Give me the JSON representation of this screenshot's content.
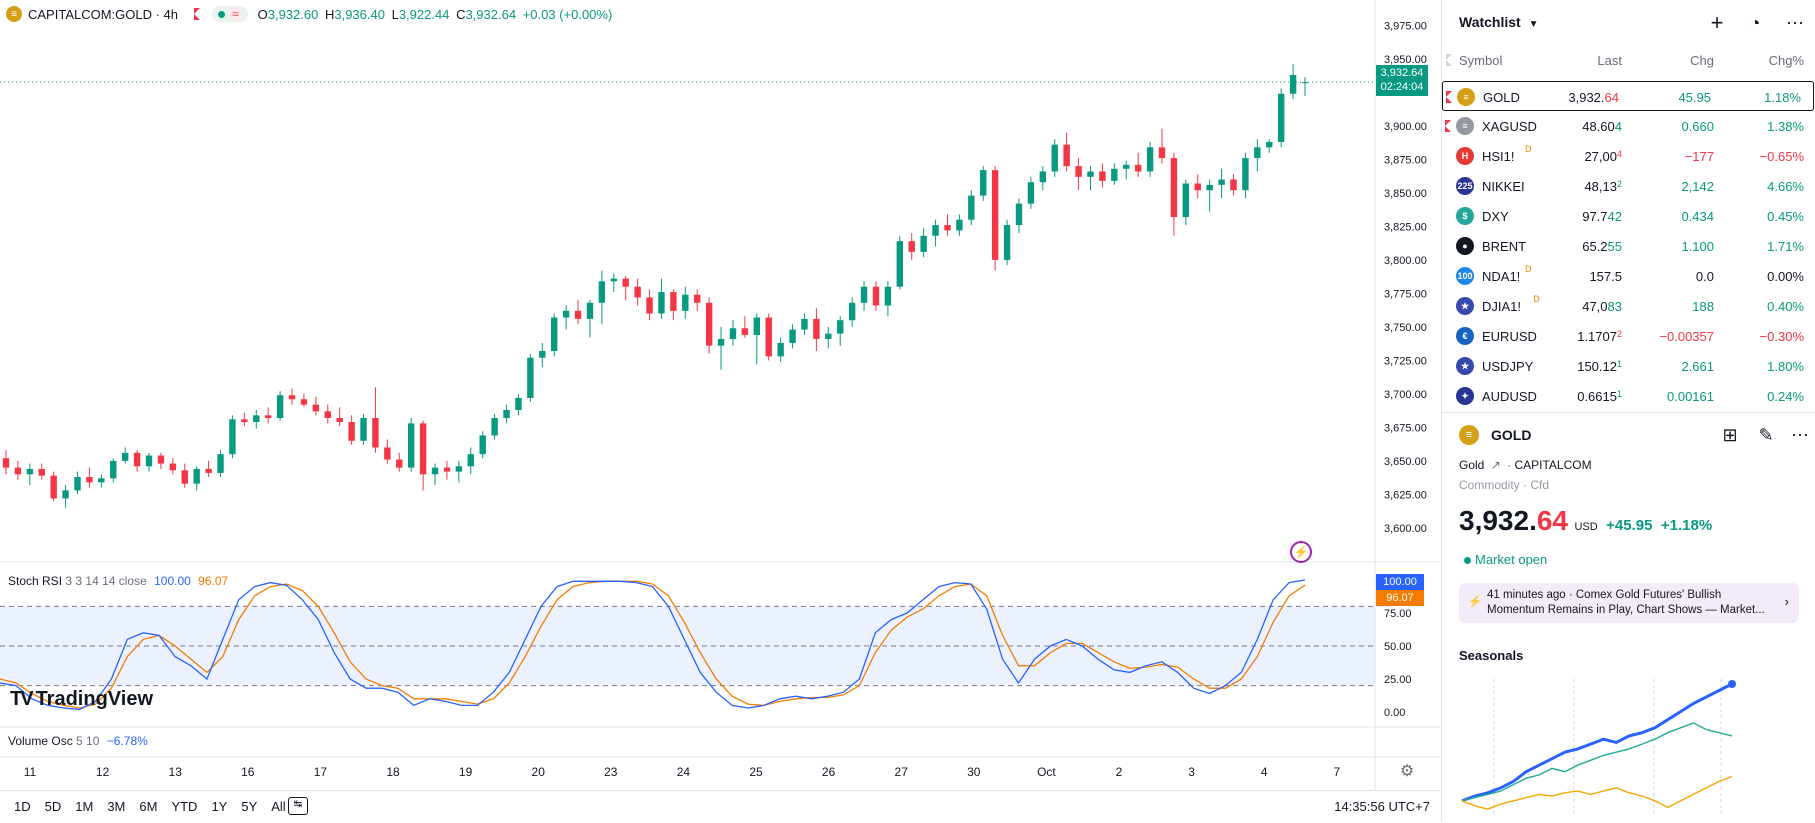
{
  "legend": {
    "symbol": "CAPITALCOM:GOLD · 4h",
    "o_label": "O",
    "o_value": "3,932.60",
    "h_label": "H",
    "h_value": "3,936.40",
    "l_label": "L",
    "l_value": "3,922.44",
    "c_label": "C",
    "c_value": "3,932.64",
    "change": "+0.03 (+0.00%)"
  },
  "price_axis": {
    "ticks": [
      {
        "v": 3975,
        "label": "3,975.00"
      },
      {
        "v": 3950,
        "label": "3,950.00"
      },
      {
        "v": 3900,
        "label": "3,900.00"
      },
      {
        "v": 3875,
        "label": "3,875.00"
      },
      {
        "v": 3850,
        "label": "3,850.00"
      },
      {
        "v": 3825,
        "label": "3,825.00"
      },
      {
        "v": 3800,
        "label": "3,800.00"
      },
      {
        "v": 3775,
        "label": "3,775.00"
      },
      {
        "v": 3750,
        "label": "3,750.00"
      },
      {
        "v": 3725,
        "label": "3,725.00"
      },
      {
        "v": 3700,
        "label": "3,700.00"
      },
      {
        "v": 3675,
        "label": "3,675.00"
      },
      {
        "v": 3650,
        "label": "3,650.00"
      },
      {
        "v": 3625,
        "label": "3,625.00"
      },
      {
        "v": 3600,
        "label": "3,600.00"
      }
    ],
    "last_price": "3,932.64",
    "countdown": "02:24:04"
  },
  "stoch": {
    "label": "Stoch RSI",
    "params": "3 3 14 14 close",
    "k_value": "100.00",
    "d_value": "96.07",
    "axis": [
      "75.00",
      "50.00",
      "25.00",
      "0.00"
    ],
    "k_color": "#2962ff",
    "d_color": "#f57c00"
  },
  "volume_osc": {
    "label": "Volume Osc",
    "params": "5 10",
    "value": "−6.78%"
  },
  "brand": "TradingView",
  "time_axis": [
    "11",
    "12",
    "13",
    "16",
    "17",
    "18",
    "19",
    "20",
    "23",
    "24",
    "25",
    "26",
    "27",
    "30",
    "Oct",
    "2",
    "3",
    "4",
    "7"
  ],
  "ranges": [
    "1D",
    "5D",
    "1M",
    "3M",
    "6M",
    "YTD",
    "1Y",
    "5Y",
    "All"
  ],
  "clock": "14:35:56 UTC+7",
  "watchlist": {
    "title": "Watchlist",
    "headers": {
      "symbol": "Symbol",
      "last": "Last",
      "chg": "Chg",
      "chgp": "Chg%"
    },
    "rows": [
      {
        "sym": "GOLD",
        "last_a": "3,932.",
        "last_b": "64",
        "chg": "45.95",
        "chgp": "1.18%",
        "dir": "pos",
        "icon": "gold-icon",
        "color": "#d4a017",
        "glyph": "≡"
      },
      {
        "sym": "XAGUSD",
        "last_a": "48.60",
        "last_b": "4",
        "chg": "0.660",
        "chgp": "1.38%",
        "dir": "pos",
        "icon": "silver-icon",
        "color": "#9598a1",
        "glyph": "≡"
      },
      {
        "sym": "HSI1!",
        "last_a": "27,00",
        "last_b": "4",
        "chg": "−177",
        "chgp": "−0.65%",
        "dir": "neg",
        "icon": "hsi-icon",
        "color": "#e53935",
        "glyph": "H",
        "badge": "D"
      },
      {
        "sym": "NIKKEI",
        "last_a": "48,13",
        "last_b": "2",
        "chg": "2,142",
        "chgp": "4.66%",
        "dir": "pos",
        "icon": "nikkei-icon",
        "color": "#283593",
        "glyph": "225"
      },
      {
        "sym": "DXY",
        "last_a": "97.7",
        "last_b": "42",
        "chg": "0.434",
        "chgp": "0.45%",
        "dir": "pos",
        "icon": "dollar-icon",
        "color": "#26a69a",
        "glyph": "$"
      },
      {
        "sym": "BRENT",
        "last_a": "65.2",
        "last_b": "55",
        "chg": "1.100",
        "chgp": "1.71%",
        "dir": "pos",
        "icon": "oil-drop-icon",
        "color": "#131722",
        "glyph": "●"
      },
      {
        "sym": "NDA1!",
        "last_a": "157.5",
        "last_b": "",
        "chg": "0.0",
        "chgp": "0.00%",
        "dir": "neu",
        "icon": "nasdaq-icon",
        "color": "#1e88e5",
        "glyph": "100",
        "badge": "D"
      },
      {
        "sym": "DJIA1!",
        "last_a": "47,0",
        "last_b": "83",
        "chg": "188",
        "chgp": "0.40%",
        "dir": "pos",
        "icon": "us-flag-icon",
        "color": "#3949ab",
        "glyph": "★",
        "badge": "D"
      },
      {
        "sym": "EURUSD",
        "last_a": "1.1707",
        "last_b": "2",
        "chg": "−0.00357",
        "chgp": "−0.30%",
        "dir": "neg",
        "icon": "eu-flag-icon",
        "color": "#1565c0",
        "glyph": "€"
      },
      {
        "sym": "USDJPY",
        "last_a": "150.12",
        "last_b": "1",
        "chg": "2.661",
        "chgp": "1.80%",
        "dir": "pos",
        "icon": "us-flag-icon",
        "color": "#3949ab",
        "glyph": "★"
      },
      {
        "sym": "AUDUSD",
        "last_a": "0.6615",
        "last_b": "1",
        "chg": "0.00161",
        "chgp": "0.24%",
        "dir": "pos",
        "icon": "au-flag-icon",
        "color": "#283593",
        "glyph": "✦"
      }
    ]
  },
  "details": {
    "symbol": "GOLD",
    "name": "Gold",
    "exchange": "CAPITALCOM",
    "category": "Commodity",
    "type": "Cfd",
    "price_a": "3,932.",
    "price_b": "64",
    "currency": "USD",
    "change": "+45.95",
    "change_pct": "+1.18%",
    "market_status": "Market open",
    "news_time": "41 minutes ago",
    "news_line1": "Comex Gold Futures' Bullish",
    "news_line2": "Momentum Remains in Play, Chart Shows — Market...",
    "seasonals_title": "Seasonals"
  },
  "colors": {
    "up": "#089981",
    "down": "#f23645",
    "accent": "#2962ff"
  },
  "chart_data": {
    "type": "candlestick",
    "title": "CAPITALCOM:GOLD · 4h",
    "candles": [
      [
        3652,
        3658,
        3640,
        3645
      ],
      [
        3645,
        3650,
        3636,
        3640
      ],
      [
        3640,
        3648,
        3632,
        3644
      ],
      [
        3644,
        3648,
        3636,
        3639
      ],
      [
        3639,
        3642,
        3620,
        3622
      ],
      [
        3622,
        3632,
        3615,
        3628
      ],
      [
        3628,
        3642,
        3625,
        3638
      ],
      [
        3638,
        3645,
        3630,
        3634
      ],
      [
        3634,
        3640,
        3630,
        3637
      ],
      [
        3637,
        3652,
        3634,
        3650
      ],
      [
        3650,
        3660,
        3648,
        3656
      ],
      [
        3656,
        3658,
        3642,
        3646
      ],
      [
        3646,
        3656,
        3642,
        3654
      ],
      [
        3654,
        3656,
        3644,
        3648
      ],
      [
        3648,
        3652,
        3640,
        3643
      ],
      [
        3643,
        3648,
        3630,
        3633
      ],
      [
        3633,
        3646,
        3628,
        3644
      ],
      [
        3644,
        3650,
        3638,
        3641
      ],
      [
        3641,
        3658,
        3638,
        3655
      ],
      [
        3655,
        3684,
        3652,
        3681
      ],
      [
        3681,
        3686,
        3676,
        3679
      ],
      [
        3679,
        3688,
        3674,
        3684
      ],
      [
        3684,
        3690,
        3678,
        3682
      ],
      [
        3682,
        3702,
        3680,
        3699
      ],
      [
        3699,
        3704,
        3692,
        3696
      ],
      [
        3696,
        3700,
        3690,
        3692
      ],
      [
        3692,
        3698,
        3684,
        3687
      ],
      [
        3687,
        3692,
        3678,
        3682
      ],
      [
        3682,
        3690,
        3676,
        3679
      ],
      [
        3679,
        3684,
        3662,
        3665
      ],
      [
        3665,
        3685,
        3662,
        3682
      ],
      [
        3682,
        3705,
        3656,
        3660
      ],
      [
        3660,
        3666,
        3648,
        3651
      ],
      [
        3651,
        3656,
        3642,
        3645
      ],
      [
        3645,
        3682,
        3642,
        3678
      ],
      [
        3678,
        3680,
        3628,
        3640
      ],
      [
        3640,
        3648,
        3632,
        3645
      ],
      [
        3645,
        3650,
        3636,
        3642
      ],
      [
        3642,
        3650,
        3634,
        3646
      ],
      [
        3646,
        3660,
        3640,
        3655
      ],
      [
        3655,
        3672,
        3652,
        3669
      ],
      [
        3669,
        3685,
        3666,
        3682
      ],
      [
        3682,
        3692,
        3678,
        3688
      ],
      [
        3688,
        3700,
        3684,
        3697
      ],
      [
        3697,
        3730,
        3694,
        3727
      ],
      [
        3727,
        3738,
        3720,
        3732
      ],
      [
        3732,
        3760,
        3728,
        3757
      ],
      [
        3757,
        3766,
        3748,
        3762
      ],
      [
        3762,
        3770,
        3752,
        3756
      ],
      [
        3756,
        3770,
        3742,
        3768
      ],
      [
        3768,
        3792,
        3752,
        3784
      ],
      [
        3784,
        3790,
        3776,
        3786
      ],
      [
        3786,
        3788,
        3770,
        3780
      ],
      [
        3780,
        3786,
        3766,
        3772
      ],
      [
        3772,
        3778,
        3755,
        3760
      ],
      [
        3760,
        3786,
        3756,
        3776
      ],
      [
        3776,
        3778,
        3755,
        3762
      ],
      [
        3762,
        3780,
        3756,
        3774
      ],
      [
        3774,
        3778,
        3762,
        3768
      ],
      [
        3768,
        3772,
        3730,
        3736
      ],
      [
        3736,
        3750,
        3718,
        3741
      ],
      [
        3741,
        3755,
        3736,
        3749
      ],
      [
        3749,
        3758,
        3742,
        3744
      ],
      [
        3744,
        3760,
        3722,
        3757
      ],
      [
        3757,
        3760,
        3725,
        3728
      ],
      [
        3728,
        3742,
        3724,
        3738
      ],
      [
        3738,
        3752,
        3734,
        3748
      ],
      [
        3748,
        3760,
        3744,
        3756
      ],
      [
        3756,
        3764,
        3732,
        3741
      ],
      [
        3741,
        3750,
        3734,
        3745
      ],
      [
        3745,
        3758,
        3736,
        3755
      ],
      [
        3755,
        3772,
        3750,
        3768
      ],
      [
        3768,
        3784,
        3762,
        3780
      ],
      [
        3780,
        3784,
        3762,
        3766
      ],
      [
        3766,
        3784,
        3758,
        3780
      ],
      [
        3780,
        3818,
        3778,
        3814
      ],
      [
        3814,
        3820,
        3800,
        3806
      ],
      [
        3806,
        3824,
        3802,
        3818
      ],
      [
        3818,
        3830,
        3810,
        3826
      ],
      [
        3826,
        3834,
        3818,
        3822
      ],
      [
        3822,
        3834,
        3818,
        3830
      ],
      [
        3830,
        3852,
        3826,
        3848
      ],
      [
        3848,
        3870,
        3844,
        3867
      ],
      [
        3867,
        3870,
        3792,
        3800
      ],
      [
        3800,
        3830,
        3796,
        3826
      ],
      [
        3826,
        3846,
        3820,
        3842
      ],
      [
        3842,
        3862,
        3838,
        3858
      ],
      [
        3858,
        3870,
        3852,
        3866
      ],
      [
        3866,
        3890,
        3862,
        3886
      ],
      [
        3886,
        3895,
        3866,
        3870
      ],
      [
        3870,
        3876,
        3852,
        3862
      ],
      [
        3862,
        3870,
        3852,
        3866
      ],
      [
        3866,
        3872,
        3854,
        3859
      ],
      [
        3859,
        3872,
        3856,
        3868
      ],
      [
        3868,
        3874,
        3860,
        3871
      ],
      [
        3871,
        3880,
        3862,
        3866
      ],
      [
        3866,
        3888,
        3862,
        3884
      ],
      [
        3884,
        3898,
        3872,
        3876
      ],
      [
        3876,
        3880,
        3818,
        3832
      ],
      [
        3832,
        3860,
        3826,
        3857
      ],
      [
        3857,
        3864,
        3846,
        3852
      ],
      [
        3852,
        3860,
        3836,
        3856
      ],
      [
        3856,
        3868,
        3846,
        3860
      ],
      [
        3860,
        3864,
        3848,
        3852
      ],
      [
        3852,
        3880,
        3846,
        3876
      ],
      [
        3876,
        3890,
        3866,
        3884
      ],
      [
        3884,
        3890,
        3880,
        3888
      ],
      [
        3888,
        3928,
        3884,
        3924
      ],
      [
        3924,
        3946,
        3920,
        3938
      ],
      [
        3932.6,
        3936.4,
        3922.44,
        3932.64
      ]
    ],
    "last_price": 3932.64,
    "ylim": [
      3585,
      3985
    ],
    "stoch_rsi": {
      "k": [
        22,
        20,
        10,
        5,
        3,
        2,
        8,
        25,
        55,
        60,
        58,
        42,
        35,
        25,
        55,
        85,
        95,
        98,
        96,
        85,
        70,
        45,
        25,
        18,
        18,
        15,
        5,
        10,
        8,
        5,
        5,
        15,
        30,
        55,
        80,
        95,
        99,
        99,
        99,
        99,
        98,
        95,
        80,
        55,
        30,
        15,
        5,
        3,
        5,
        10,
        12,
        10,
        12,
        15,
        25,
        60,
        70,
        75,
        85,
        95,
        98,
        97,
        78,
        40,
        22,
        40,
        50,
        55,
        50,
        40,
        32,
        30,
        35,
        38,
        30,
        18,
        14,
        20,
        30,
        55,
        85,
        98,
        100
      ],
      "d": [
        25,
        22,
        14,
        8,
        5,
        3,
        6,
        18,
        42,
        55,
        58,
        50,
        40,
        30,
        42,
        70,
        88,
        95,
        97,
        92,
        80,
        60,
        38,
        25,
        20,
        18,
        10,
        10,
        10,
        8,
        6,
        10,
        22,
        42,
        65,
        85,
        95,
        98,
        99,
        99,
        99,
        97,
        88,
        68,
        45,
        25,
        12,
        6,
        5,
        8,
        10,
        11,
        11,
        13,
        20,
        45,
        62,
        72,
        78,
        88,
        95,
        97,
        88,
        58,
        35,
        35,
        45,
        52,
        52,
        45,
        38,
        33,
        34,
        36,
        34,
        25,
        18,
        18,
        25,
        42,
        68,
        88,
        96.07
      ]
    },
    "seasonals": {
      "series": [
        {
          "color": "#2962ff",
          "values": [
            0,
            3,
            5,
            8,
            12,
            18,
            22,
            26,
            30,
            32,
            35,
            38,
            36,
            40,
            42,
            45,
            50,
            55,
            60,
            64,
            68,
            72
          ]
        },
        {
          "color": "#22ab94",
          "values": [
            0,
            2,
            4,
            6,
            10,
            14,
            16,
            20,
            18,
            22,
            25,
            28,
            30,
            32,
            35,
            38,
            42,
            45,
            48,
            44,
            42,
            40
          ]
        },
        {
          "color": "#f7a600",
          "values": [
            0,
            -3,
            -5,
            -2,
            0,
            2,
            4,
            3,
            5,
            6,
            4,
            6,
            8,
            5,
            3,
            0,
            -4,
            0,
            4,
            8,
            12,
            15
          ]
        }
      ]
    }
  }
}
